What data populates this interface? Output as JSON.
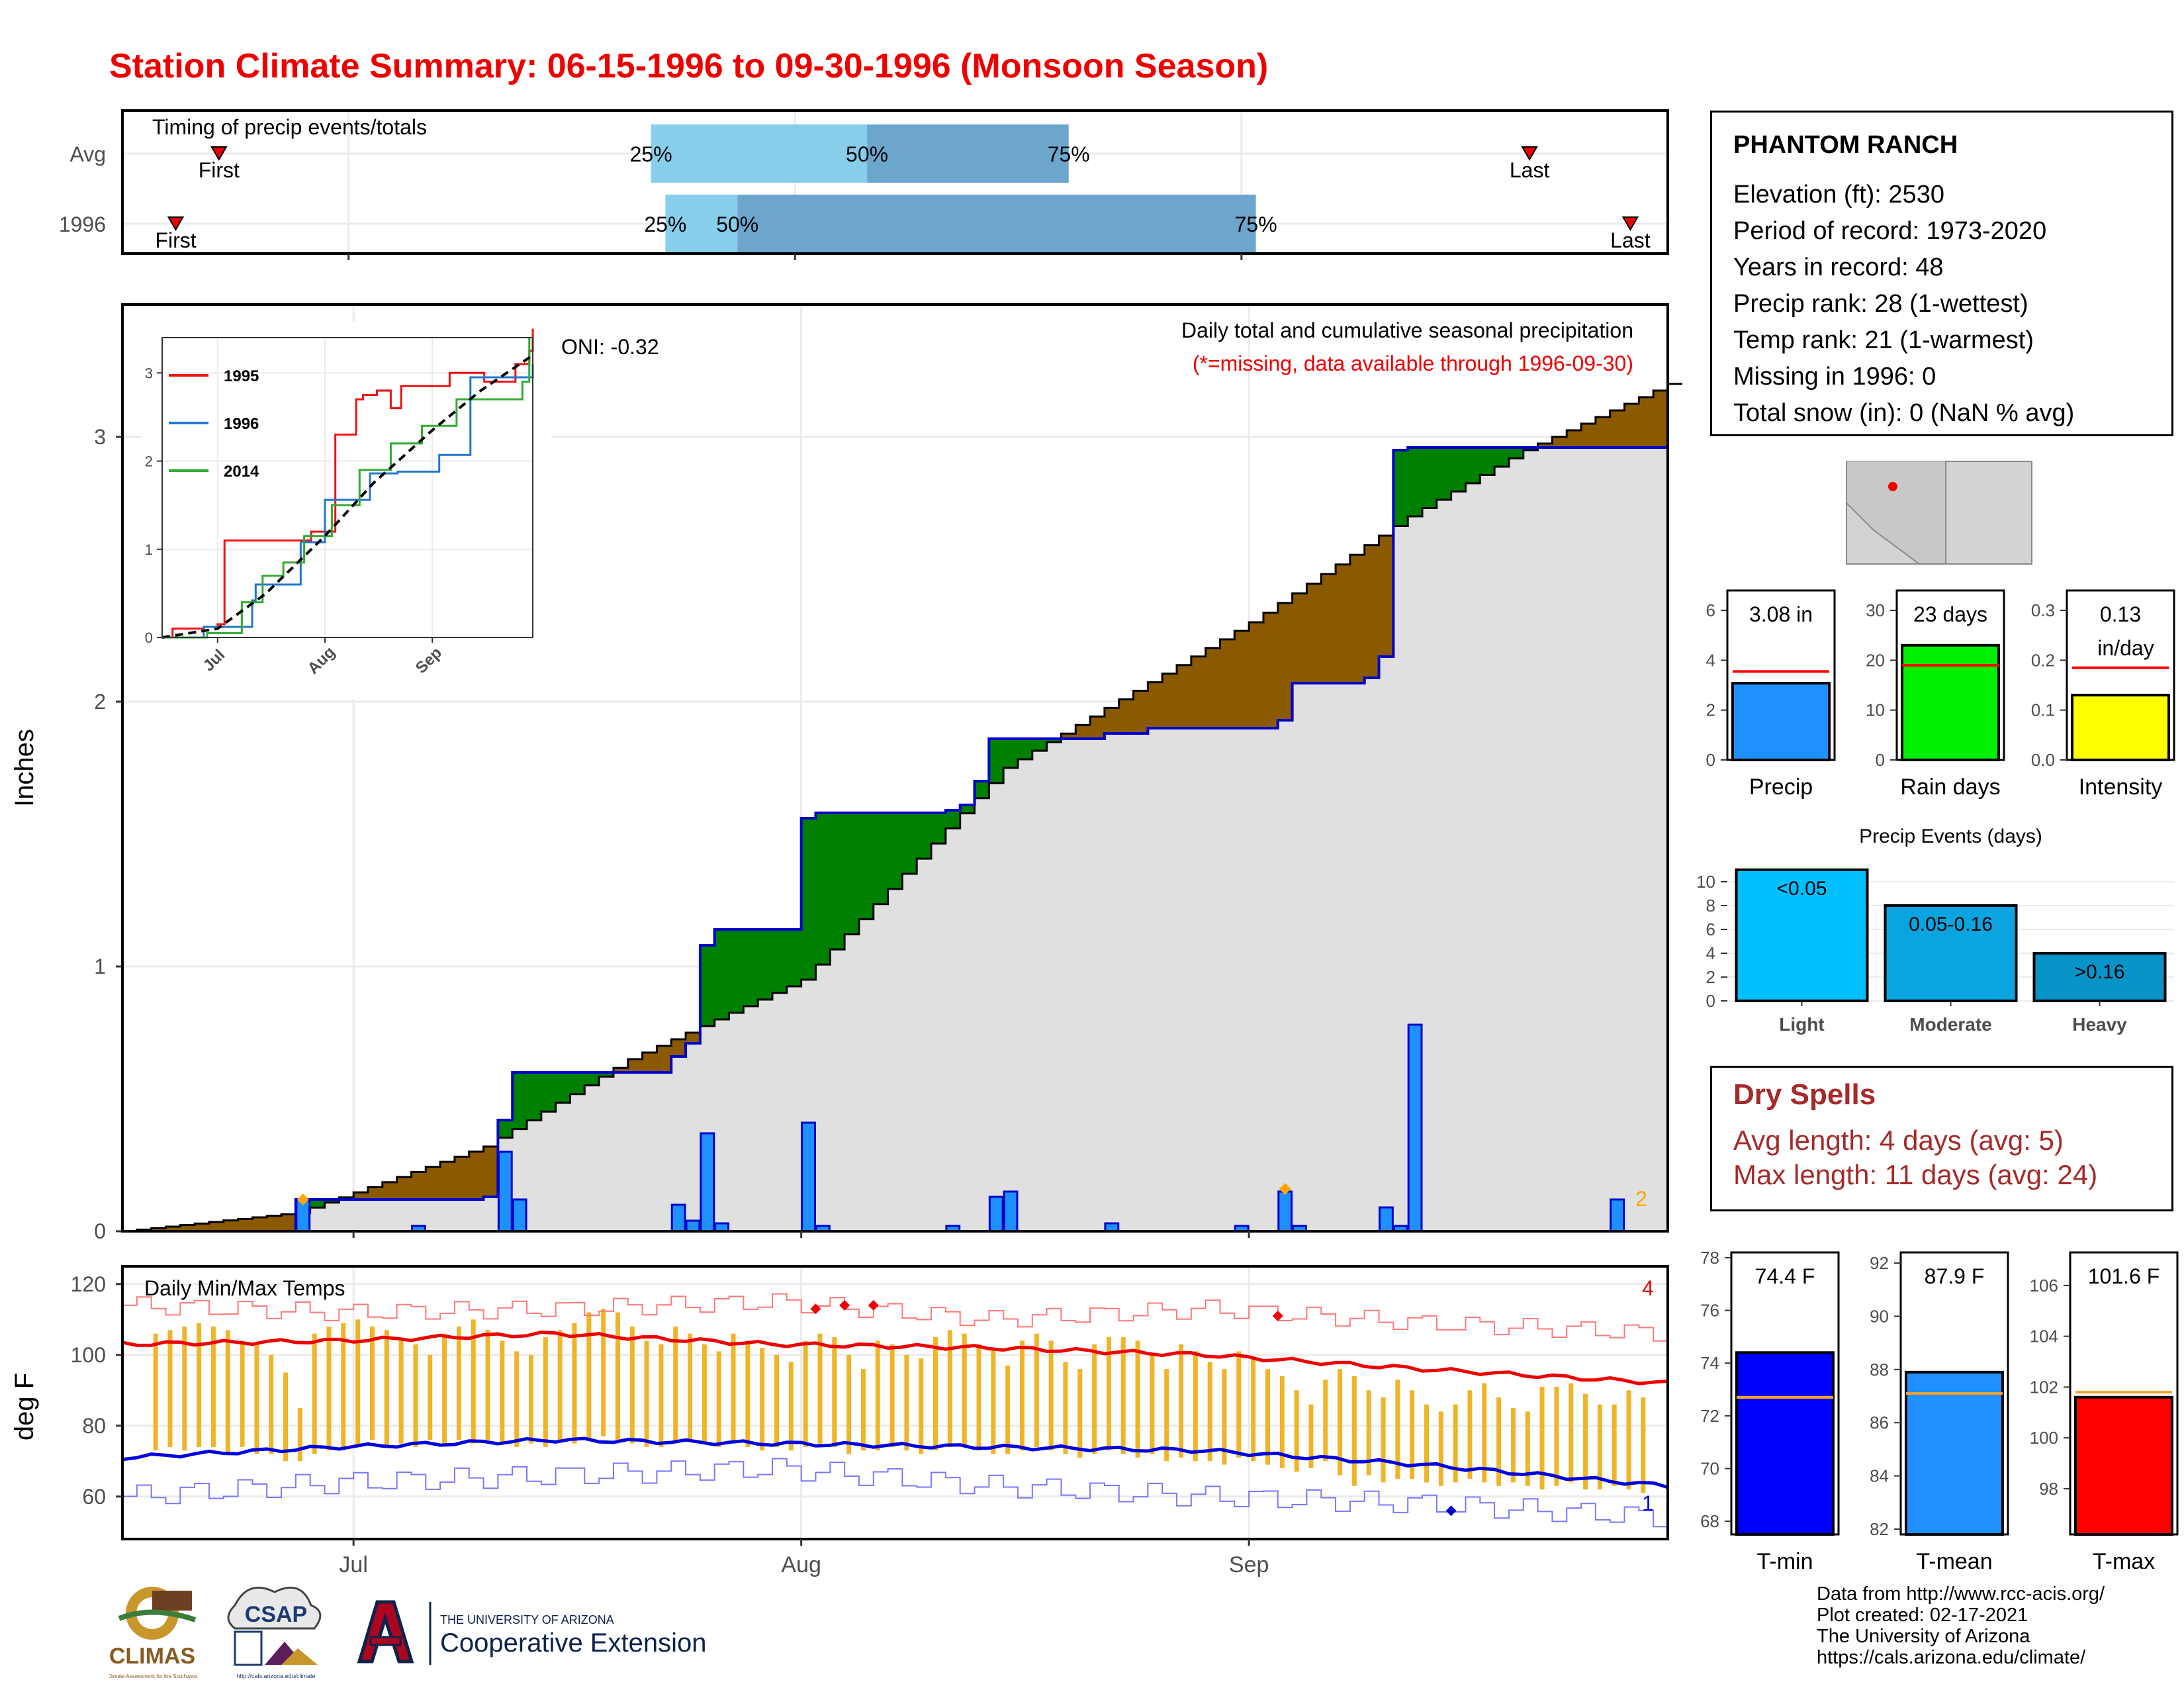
{
  "title": "Station Climate Summary: 06-15-1996 to 09-30-1996 (Monsoon Season)",
  "colors": {
    "title": "#ee0000",
    "brown": "#8b5a00",
    "green": "#008000",
    "grey_area": "#e0e0e0",
    "blue_line": "#0000cc",
    "bar_blue": "#1e90ff",
    "orange": "#ffa500",
    "red": "#ff0000",
    "temp_bar": "#f0b429",
    "dry_spells": "#a52a2a"
  },
  "timing_panel": {
    "title": "Timing of precip events/totals",
    "rows": [
      {
        "label": "Avg",
        "first_label": "First",
        "last_label": "Last",
        "first": "1996-06-22",
        "last": "1996-09-21",
        "p25": "1996-07-22",
        "p50": "1996-08-06",
        "p75": "1996-08-20",
        "p25_label": "25%",
        "p50_label": "50%",
        "p75_label": "75%"
      },
      {
        "label": "1996",
        "first_label": "First",
        "last_label": "Last",
        "first": "1996-06-19",
        "last": "1996-09-28",
        "p25": "1996-07-23",
        "p50": "1996-07-28",
        "p75": "1996-09-02",
        "p25_label": "25%",
        "p50_label": "50%",
        "p75_label": "75%"
      }
    ]
  },
  "precip_panel": {
    "ylabel": "Inches",
    "oni": "ONI: -0.32",
    "note_main": "Daily total and cumulative seasonal precipitation",
    "note_missing": "(*=missing, data available through 1996-09-30)",
    "corner_count": "2",
    "yticks": [
      "0",
      "1",
      "2",
      "3"
    ]
  },
  "chart_data": [
    {
      "type": "area",
      "x_range": [
        "1996-06-15",
        "1996-09-30"
      ],
      "ylim": [
        0,
        3.5
      ],
      "xticks": [
        "Jul",
        "Aug",
        "Sep"
      ],
      "series": [
        {
          "name": "1996",
          "kind": "cumulative",
          "x": [
            "1996-06-15",
            "1996-06-27",
            "1996-07-10",
            "1996-07-11",
            "1996-07-12",
            "1996-07-23",
            "1996-07-24",
            "1996-07-25",
            "1996-07-26",
            "1996-08-01",
            "1996-08-02",
            "1996-08-11",
            "1996-08-12",
            "1996-08-13",
            "1996-08-14",
            "1996-08-22",
            "1996-08-25",
            "1996-09-03",
            "1996-09-04",
            "1996-09-09",
            "1996-09-10",
            "1996-09-11",
            "1996-09-12",
            "1996-09-30"
          ],
          "y": [
            0,
            0.12,
            0.13,
            0.42,
            0.6,
            0.66,
            0.71,
            1.08,
            1.14,
            1.56,
            1.58,
            1.59,
            1.61,
            1.7,
            1.86,
            1.88,
            1.9,
            1.93,
            2.07,
            2.09,
            2.17,
            2.95,
            2.96,
            3.1
          ]
        },
        {
          "name": "Average",
          "kind": "cumulative",
          "x": [
            "1996-06-15",
            "1996-06-27",
            "1996-07-10",
            "1996-07-20",
            "1996-08-01",
            "1996-08-15",
            "1996-09-01",
            "1996-09-12",
            "1996-09-20",
            "1996-09-30"
          ],
          "y": [
            0,
            0.07,
            0.32,
            0.65,
            0.95,
            1.75,
            2.3,
            2.7,
            2.95,
            3.2
          ]
        },
        {
          "name": "Daily precip",
          "x": [
            "1996-06-27",
            "1996-07-05",
            "1996-07-11",
            "1996-07-12",
            "1996-07-23",
            "1996-07-24",
            "1996-07-25",
            "1996-07-26",
            "1996-08-01",
            "1996-08-02",
            "1996-08-11",
            "1996-08-14",
            "1996-08-15",
            "1996-08-22",
            "1996-08-31",
            "1996-09-03",
            "1996-09-04",
            "1996-09-10",
            "1996-09-11",
            "1996-09-12",
            "1996-09-26"
          ],
          "y": [
            0.12,
            0.02,
            0.3,
            0.12,
            0.1,
            0.04,
            0.37,
            0.03,
            0.41,
            0.02,
            0.02,
            0.13,
            0.15,
            0.03,
            0.02,
            0.15,
            0.02,
            0.09,
            0.02,
            0.78,
            0.12
          ]
        }
      ],
      "markers": [
        {
          "x": "1996-06-27",
          "y": 0.12,
          "color": "orange"
        },
        {
          "x": "1996-09-03",
          "y": 0.16,
          "color": "orange"
        }
      ]
    },
    {
      "type": "line",
      "inset": true,
      "x_range": [
        "1996-06-15",
        "1996-09-30"
      ],
      "ylim": [
        0,
        3.4
      ],
      "xticks": [
        "Jul",
        "Aug",
        "Sep"
      ],
      "yticks": [
        "0",
        "1",
        "2",
        "3"
      ],
      "series": [
        {
          "name": "1995",
          "color": "#ee1111",
          "x": [
            "1996-06-15",
            "1996-06-18",
            "1996-06-27",
            "1996-07-01",
            "1996-07-03",
            "1996-07-17",
            "1996-07-28",
            "1996-08-04",
            "1996-08-10",
            "1996-08-12",
            "1996-08-16",
            "1996-08-20",
            "1996-08-23",
            "1996-08-28",
            "1996-09-06",
            "1996-09-16",
            "1996-09-25",
            "1996-09-29",
            "1996-09-30"
          ],
          "y": [
            0,
            0.1,
            0.12,
            0.15,
            1.1,
            1.1,
            1.2,
            2.3,
            2.7,
            2.75,
            2.8,
            2.6,
            2.85,
            2.85,
            3.0,
            2.9,
            3.1,
            3.25,
            3.5
          ]
        },
        {
          "name": "1996",
          "color": "#2277cc",
          "x": [
            "1996-06-15",
            "1996-06-27",
            "1996-07-11",
            "1996-07-12",
            "1996-07-25",
            "1996-08-01",
            "1996-08-14",
            "1996-08-22",
            "1996-09-03",
            "1996-09-12",
            "1996-09-30"
          ],
          "y": [
            0,
            0.12,
            0.42,
            0.6,
            1.08,
            1.56,
            1.86,
            1.88,
            2.07,
            2.95,
            3.1
          ]
        },
        {
          "name": "2014",
          "color": "#33aa33",
          "x": [
            "1996-06-15",
            "1996-06-28",
            "1996-07-08",
            "1996-07-14",
            "1996-07-20",
            "1996-07-26",
            "1996-08-03",
            "1996-08-11",
            "1996-08-20",
            "1996-08-29",
            "1996-09-08",
            "1996-09-18",
            "1996-09-27",
            "1996-09-29"
          ],
          "y": [
            0,
            0.05,
            0.4,
            0.7,
            0.85,
            1.15,
            1.5,
            1.9,
            2.2,
            2.4,
            2.7,
            2.7,
            2.9,
            3.4
          ]
        },
        {
          "name": "Average",
          "color": "#000000",
          "dashed": true,
          "x": [
            "1996-06-15",
            "1996-07-01",
            "1996-07-15",
            "1996-08-01",
            "1996-08-15",
            "1996-09-01",
            "1996-09-15",
            "1996-09-30"
          ],
          "y": [
            0,
            0.1,
            0.5,
            1.15,
            1.75,
            2.35,
            2.8,
            3.2
          ]
        }
      ]
    },
    {
      "type": "line",
      "title": "Daily Min/Max Temps",
      "ylabel": "deg F",
      "x_range": [
        "1996-06-15",
        "1996-09-30"
      ],
      "ylim": [
        48,
        125
      ],
      "yticks": [
        "60",
        "80",
        "100",
        "120"
      ],
      "xticks": [
        "Jul",
        "Aug",
        "Sep"
      ],
      "corner_counts": {
        "record_high": "4",
        "record_low": "1"
      },
      "series": [
        {
          "name": "Record max",
          "x_days": [
            0,
            15,
            30,
            45,
            60,
            75,
            90,
            107
          ],
          "y": [
            114,
            112,
            113,
            115,
            110,
            113,
            109,
            106
          ]
        },
        {
          "name": "Avg max",
          "x_days": [
            0,
            15,
            30,
            45,
            60,
            75,
            90,
            107
          ],
          "y": [
            103,
            104,
            106,
            103,
            102,
            100,
            96,
            92
          ]
        },
        {
          "name": "Avg min",
          "x_days": [
            0,
            15,
            30,
            45,
            60,
            75,
            90,
            107
          ],
          "y": [
            71,
            74,
            76,
            75,
            74,
            73,
            69,
            63
          ]
        },
        {
          "name": "Record min",
          "x_days": [
            0,
            15,
            30,
            45,
            60,
            75,
            90,
            107
          ],
          "y": [
            60,
            64,
            66,
            68,
            63,
            60,
            58,
            54
          ]
        }
      ],
      "daily_ranges": {
        "start": "1996-06-17",
        "max": [
          106,
          107,
          108,
          109,
          108,
          107,
          104,
          103,
          100,
          95,
          85,
          106,
          108,
          109,
          110,
          108,
          107,
          104,
          103,
          100,
          106,
          108,
          110,
          107,
          104,
          101,
          100,
          105,
          107,
          109,
          112,
          113,
          112,
          108,
          104,
          103,
          108,
          106,
          103,
          101,
          106,
          104,
          102,
          100,
          98,
          104,
          106,
          105,
          100,
          96,
          104,
          103,
          100,
          99,
          105,
          107,
          106,
          103,
          102,
          97,
          104,
          106,
          104,
          98,
          96,
          103,
          105,
          105,
          104,
          100,
          96,
          103,
          101,
          98,
          96,
          101,
          99,
          96,
          94,
          90,
          86,
          93,
          96,
          94,
          90,
          88,
          93,
          90,
          86,
          84,
          86,
          90,
          92,
          88,
          85,
          84,
          91,
          91,
          92,
          89,
          86,
          86,
          90,
          88
        ],
        "min": [
          73,
          74,
          73,
          74,
          74,
          72,
          74,
          72,
          72,
          70,
          70,
          72,
          73,
          74,
          74,
          76,
          74,
          75,
          74,
          76,
          75,
          76,
          75,
          76,
          75,
          74,
          75,
          74,
          76,
          75,
          76,
          77,
          76,
          75,
          74,
          74,
          75,
          76,
          75,
          74,
          75,
          74,
          73,
          74,
          73,
          74,
          75,
          74,
          72,
          73,
          73,
          74,
          73,
          72,
          73,
          74,
          74,
          73,
          72,
          72,
          73,
          74,
          73,
          72,
          71,
          72,
          73,
          72,
          71,
          72,
          70,
          71,
          70,
          70,
          69,
          71,
          70,
          69,
          68,
          67,
          68,
          70,
          66,
          63,
          66,
          64,
          65,
          65,
          64,
          63,
          64,
          65,
          64,
          63,
          64,
          63,
          62,
          63,
          64,
          62,
          62,
          63,
          62,
          61
        ]
      },
      "markers": [
        {
          "x_day": 48,
          "y": 113,
          "color": "red"
        },
        {
          "x_day": 50,
          "y": 114,
          "color": "red"
        },
        {
          "x_day": 52,
          "y": 114,
          "color": "red"
        },
        {
          "x_day": 80,
          "y": 111,
          "color": "red"
        },
        {
          "x_day": 92,
          "y": 56,
          "color": "blue"
        }
      ]
    },
    {
      "type": "bar",
      "categories": [
        "Precip"
      ],
      "values": [
        3.08
      ],
      "average": 3.55,
      "ylim": [
        0,
        6.8
      ],
      "yticks": [
        "0",
        "2",
        "4",
        "6"
      ],
      "value_label": "3.08 in",
      "color": "#1e90ff"
    },
    {
      "type": "bar",
      "categories": [
        "Rain days"
      ],
      "values": [
        23
      ],
      "average": 19,
      "ylim": [
        0,
        34
      ],
      "yticks": [
        "0",
        "10",
        "20",
        "30"
      ],
      "value_label": "23 days",
      "color": "#00ee00"
    },
    {
      "type": "bar",
      "categories": [
        "Intensity"
      ],
      "values": [
        0.13
      ],
      "average": 0.185,
      "ylim": [
        0,
        0.34
      ],
      "yticks": [
        "0.0",
        "0.1",
        "0.2",
        "0.3"
      ],
      "value_label": "0.13",
      "value_unit": "in/day",
      "color": "#ffff00"
    },
    {
      "type": "bar",
      "title": "Precip Events (days)",
      "categories": [
        "Light",
        "Moderate",
        "Heavy"
      ],
      "values": [
        11,
        8,
        4
      ],
      "bar_labels": [
        "<0.05",
        "0.05-0.16",
        ">0.16"
      ],
      "ylim": [
        0,
        11.5
      ],
      "yticks": [
        "0",
        "2",
        "4",
        "6",
        "8",
        "10"
      ],
      "colors": [
        "#00bfff",
        "#0aa5e0",
        "#0894c8"
      ]
    },
    {
      "type": "bar",
      "categories": [
        "T-min"
      ],
      "values": [
        74.4
      ],
      "average": 72.7,
      "ylim": [
        67.5,
        78.2
      ],
      "yticks": [
        "68",
        "70",
        "72",
        "74",
        "76",
        "78"
      ],
      "value_label": "74.4 F",
      "color": "#0000ff"
    },
    {
      "type": "bar",
      "categories": [
        "T-mean"
      ],
      "values": [
        87.9
      ],
      "average": 87.1,
      "ylim": [
        81.8,
        92.4
      ],
      "yticks": [
        "82",
        "84",
        "86",
        "88",
        "90",
        "92"
      ],
      "value_label": "87.9 F",
      "color": "#1e90ff"
    },
    {
      "type": "bar",
      "categories": [
        "T-max"
      ],
      "values": [
        101.6
      ],
      "average": 101.8,
      "ylim": [
        96.2,
        107.3
      ],
      "yticks": [
        "98",
        "100",
        "102",
        "104",
        "106"
      ],
      "value_label": "101.6 F",
      "color": "#ff0000"
    }
  ],
  "station": {
    "name": "PHANTOM RANCH",
    "lines": [
      "Elevation (ft): 2530",
      "Period of record: 1973-2020",
      "Years in record: 48",
      "Precip rank: 28 (1-wettest)",
      "Temp rank: 21 (1-warmest)",
      "Missing in 1996: 0",
      "Total snow (in): 0 (NaN % avg)"
    ]
  },
  "dry_spells": {
    "title": "Dry Spells",
    "avg": "Avg length: 4 days (avg: 5)",
    "max": "Max length: 11 days (avg: 24)"
  },
  "credits": [
    "Data from http://www.rcc-acis.org/",
    "Plot created: 02-17-2021",
    "The University of Arizona",
    "https://cals.arizona.edu/climate/"
  ],
  "logos": {
    "climas": "CLIMAS",
    "climas_sub": "Climate Assessment for the Southwest",
    "csap": "CSAP",
    "csap_url": "http://cals.arizona.edu/climate",
    "ua_line1": "THE UNIVERSITY OF ARIZONA",
    "ua_line2": "Cooperative Extension"
  }
}
